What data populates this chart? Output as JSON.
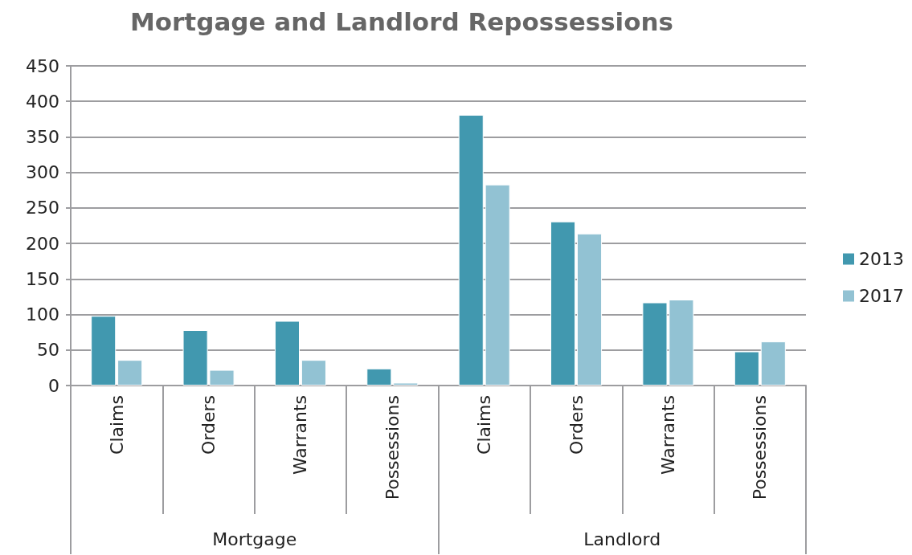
{
  "chart_data": {
    "type": "bar",
    "title": "Mortgage and Landlord Repossessions",
    "categories": [
      "Claims",
      "Orders",
      "Warrants",
      "Possessions",
      "Claims",
      "Orders",
      "Warrants",
      "Possessions"
    ],
    "series": [
      {
        "name": "2013",
        "color": "#4198af",
        "values": [
          98,
          78,
          91,
          24,
          381,
          231,
          117,
          48
        ]
      },
      {
        "name": "2017",
        "color": "#92c2d3",
        "values": [
          36,
          22,
          36,
          4,
          283,
          214,
          121,
          62
        ]
      }
    ],
    "annotations": [
      "Mortgage",
      "Landlord"
    ],
    "ylim": [
      0,
      450
    ],
    "yticks": [
      0,
      50,
      100,
      150,
      200,
      250,
      300,
      350,
      400,
      450
    ],
    "grid": "y",
    "legend": "right"
  }
}
